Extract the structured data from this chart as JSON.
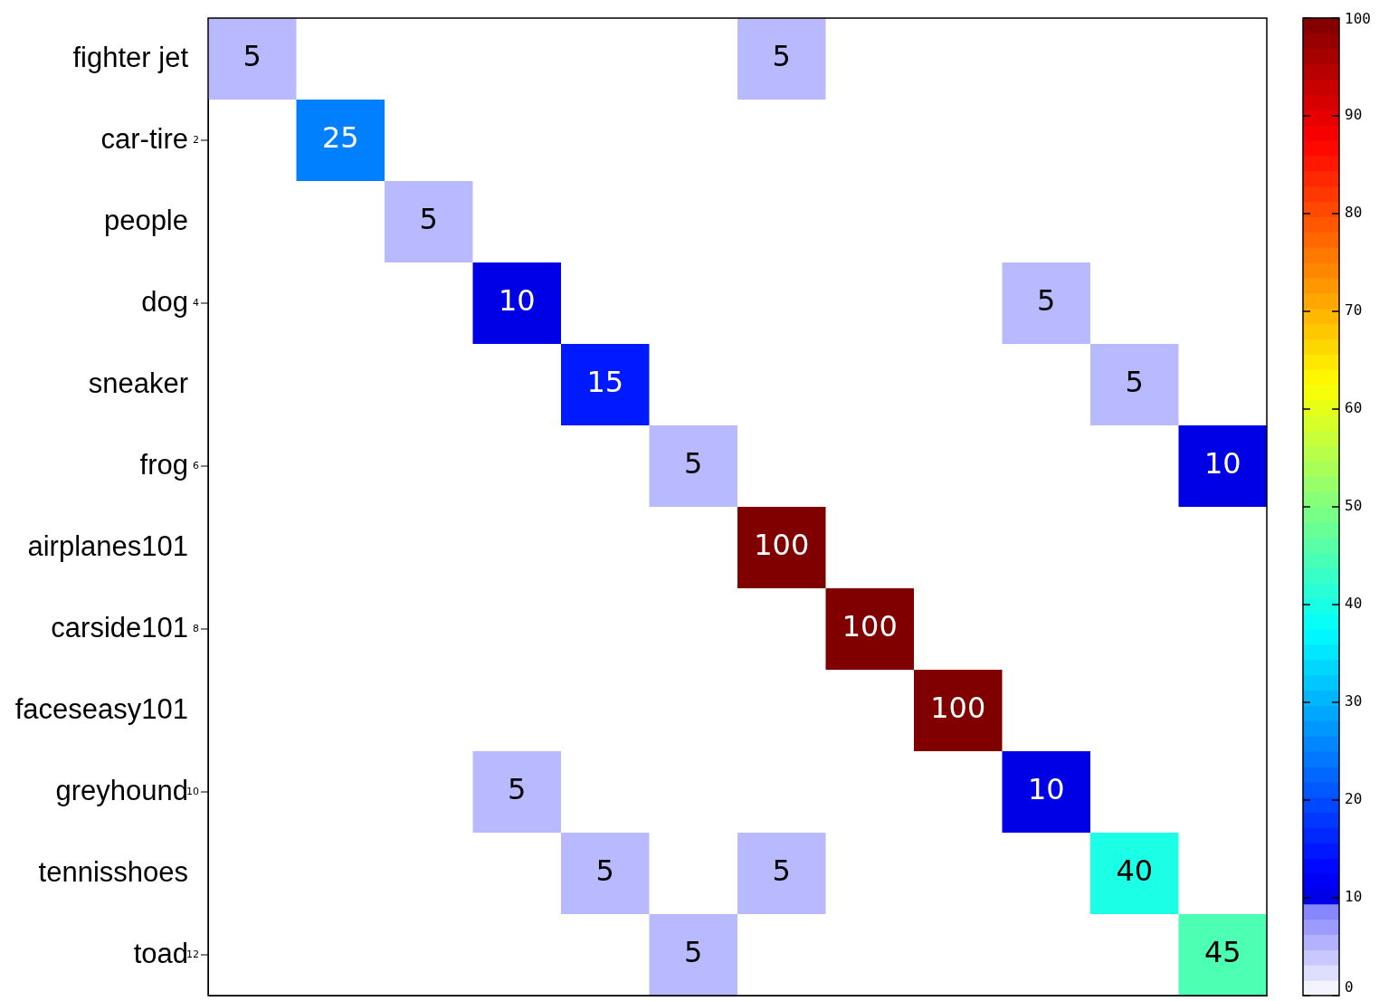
{
  "chart_data": {
    "type": "heatmap",
    "categories": [
      null,
      null,
      null,
      null,
      null,
      null,
      null,
      null,
      null,
      null,
      null,
      null
    ],
    "y_categories": [
      "fighter jet",
      "car-tire",
      "people",
      "dog",
      "sneaker",
      "frog",
      "airplanes101",
      "carside101",
      "faceseasy101",
      "greyhound",
      "tennisshoes",
      "toad"
    ],
    "cells": [
      [
        5,
        null,
        null,
        null,
        null,
        null,
        5,
        null,
        null,
        null,
        null,
        null
      ],
      [
        null,
        25,
        null,
        null,
        null,
        null,
        null,
        null,
        null,
        null,
        null,
        null
      ],
      [
        null,
        null,
        5,
        null,
        null,
        null,
        null,
        null,
        null,
        null,
        null,
        null
      ],
      [
        null,
        null,
        null,
        10,
        null,
        null,
        null,
        null,
        null,
        5,
        null,
        null
      ],
      [
        null,
        null,
        null,
        null,
        15,
        null,
        null,
        null,
        null,
        null,
        5,
        null
      ],
      [
        null,
        null,
        null,
        null,
        null,
        5,
        null,
        null,
        null,
        null,
        null,
        10
      ],
      [
        null,
        null,
        null,
        null,
        null,
        null,
        100,
        null,
        null,
        null,
        null,
        null
      ],
      [
        null,
        null,
        null,
        null,
        null,
        null,
        null,
        100,
        null,
        null,
        null,
        null
      ],
      [
        null,
        null,
        null,
        null,
        null,
        null,
        null,
        null,
        100,
        null,
        null,
        null
      ],
      [
        null,
        null,
        null,
        5,
        null,
        null,
        null,
        null,
        null,
        10,
        null,
        null
      ],
      [
        null,
        null,
        null,
        null,
        5,
        null,
        5,
        null,
        null,
        null,
        40,
        null
      ],
      [
        null,
        null,
        null,
        null,
        null,
        5,
        null,
        null,
        null,
        null,
        null,
        45
      ]
    ],
    "data_labels": true,
    "y2_categories": [
      null,
      "2",
      null,
      "4",
      null,
      "6",
      null,
      "8",
      null,
      "10",
      null,
      "12"
    ],
    "clim": [
      0,
      100
    ],
    "cticks": [
      0,
      10,
      20,
      30,
      40,
      50,
      60,
      70,
      80,
      90,
      100
    ]
  }
}
